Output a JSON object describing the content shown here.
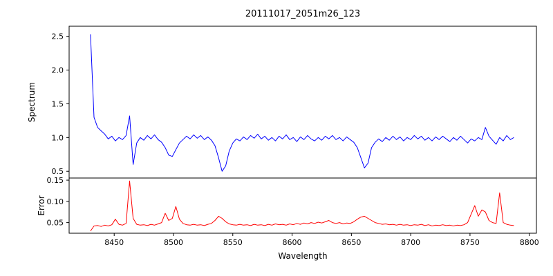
{
  "chart_data": {
    "type": "line",
    "title": "20111017_2051m26_123",
    "xlabel": "Wavelength",
    "x_start": 8430,
    "x_step": 3,
    "xlim": [
      8412,
      8806
    ],
    "x_ticks": [
      8450,
      8500,
      8550,
      8600,
      8650,
      8700,
      8750,
      8800
    ],
    "grid": false,
    "legend": "none",
    "panels": [
      {
        "name": "spectrum",
        "ylabel": "Spectrum",
        "color": "#0000ff",
        "ylim": [
          0.4,
          2.65
        ],
        "ytick_values": [
          0.5,
          1.0,
          1.5,
          2.0,
          2.5
        ],
        "ytick_labels": [
          "0.5",
          "1.0",
          "1.5",
          "2.0",
          "2.5"
        ],
        "features": "sharp spike to 2.53 at 8430; narrow up/down artifact near 8464; Ca II triplet absorption dips near 8498 (0.72), 8542 (0.50), 8662 (0.55); noisy continuum near 1.0",
        "values": [
          2.53,
          1.3,
          1.15,
          1.1,
          1.05,
          0.98,
          1.02,
          0.95,
          1.0,
          0.97,
          1.03,
          1.32,
          0.6,
          0.92,
          1.0,
          0.96,
          1.03,
          0.98,
          1.04,
          0.97,
          0.93,
          0.85,
          0.74,
          0.72,
          0.82,
          0.92,
          0.97,
          1.02,
          0.98,
          1.04,
          0.99,
          1.03,
          0.97,
          1.01,
          0.96,
          0.88,
          0.7,
          0.5,
          0.58,
          0.8,
          0.92,
          0.98,
          0.95,
          1.01,
          0.97,
          1.03,
          0.99,
          1.05,
          0.98,
          1.02,
          0.96,
          1.0,
          0.95,
          1.02,
          0.98,
          1.04,
          0.97,
          1.0,
          0.94,
          1.01,
          0.97,
          1.03,
          0.98,
          0.95,
          1.0,
          0.96,
          1.02,
          0.98,
          1.03,
          0.97,
          1.0,
          0.95,
          1.01,
          0.97,
          0.93,
          0.85,
          0.7,
          0.55,
          0.62,
          0.85,
          0.93,
          0.98,
          0.94,
          1.0,
          0.96,
          1.02,
          0.97,
          1.01,
          0.95,
          1.0,
          0.97,
          1.03,
          0.98,
          1.02,
          0.96,
          1.0,
          0.95,
          1.01,
          0.97,
          1.02,
          0.98,
          0.94,
          1.0,
          0.96,
          1.02,
          0.97,
          0.92,
          0.98,
          0.95,
          1.0,
          0.97,
          1.15,
          1.02,
          0.96,
          0.9,
          1.0,
          0.95,
          1.03,
          0.97,
          1.0
        ]
      },
      {
        "name": "error",
        "ylabel": "Error",
        "color": "#ff0000",
        "ylim": [
          0.025,
          0.155
        ],
        "ytick_values": [
          0.05,
          0.1,
          0.15
        ],
        "ytick_labels": [
          "0.05",
          "0.10",
          "0.15"
        ],
        "features": "baseline ~0.045; narrow spike to ~0.148 near 8464; bumps near 8495-8505, 8540, 8660; cluster of spikes 8750-8780 up to ~0.12",
        "values": [
          0.03,
          0.042,
          0.043,
          0.041,
          0.044,
          0.042,
          0.045,
          0.058,
          0.046,
          0.044,
          0.048,
          0.148,
          0.06,
          0.046,
          0.044,
          0.045,
          0.043,
          0.046,
          0.044,
          0.047,
          0.05,
          0.072,
          0.055,
          0.06,
          0.088,
          0.058,
          0.048,
          0.045,
          0.044,
          0.046,
          0.044,
          0.045,
          0.043,
          0.046,
          0.048,
          0.055,
          0.065,
          0.06,
          0.052,
          0.047,
          0.045,
          0.044,
          0.046,
          0.044,
          0.045,
          0.043,
          0.046,
          0.044,
          0.045,
          0.043,
          0.046,
          0.044,
          0.047,
          0.045,
          0.046,
          0.044,
          0.047,
          0.045,
          0.048,
          0.046,
          0.049,
          0.047,
          0.05,
          0.048,
          0.051,
          0.049,
          0.052,
          0.055,
          0.05,
          0.048,
          0.05,
          0.047,
          0.049,
          0.048,
          0.052,
          0.058,
          0.063,
          0.065,
          0.06,
          0.055,
          0.05,
          0.048,
          0.046,
          0.047,
          0.045,
          0.046,
          0.044,
          0.046,
          0.044,
          0.045,
          0.043,
          0.045,
          0.044,
          0.046,
          0.043,
          0.045,
          0.042,
          0.044,
          0.043,
          0.045,
          0.043,
          0.044,
          0.042,
          0.044,
          0.043,
          0.045,
          0.05,
          0.07,
          0.09,
          0.065,
          0.08,
          0.075,
          0.055,
          0.05,
          0.048,
          0.12,
          0.05,
          0.046,
          0.044,
          0.043
        ]
      }
    ]
  }
}
